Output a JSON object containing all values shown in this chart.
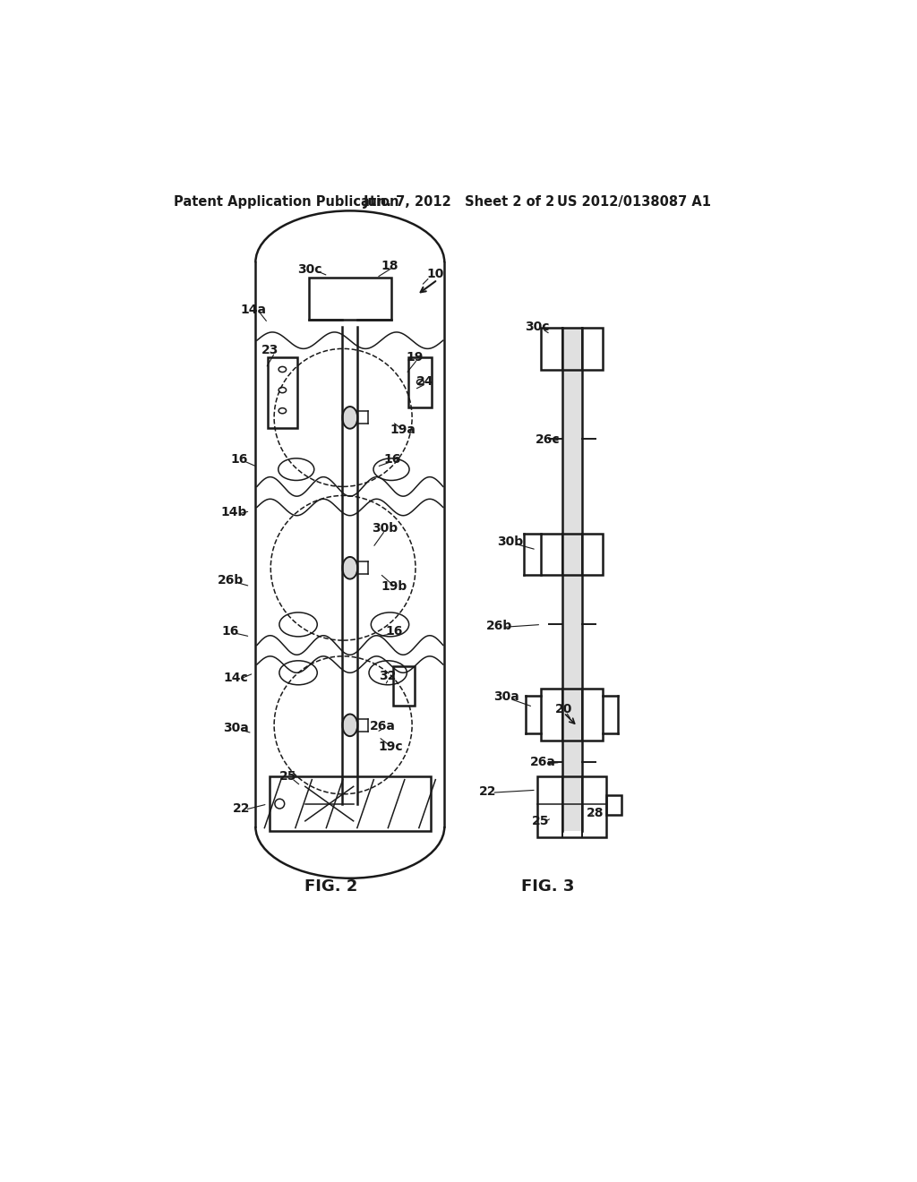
{
  "bg_color": "#ffffff",
  "line_color": "#1a1a1a",
  "header_text": "Patent Application Publication",
  "header_date": "Jun. 7, 2012   Sheet 2 of 2",
  "header_patent": "US 2012/0138087 A1",
  "fig2_label": "FIG. 2",
  "fig3_label": "FIG. 3",
  "font_size_header": 10.5,
  "font_size_label": 13,
  "font_size_ref": 10
}
